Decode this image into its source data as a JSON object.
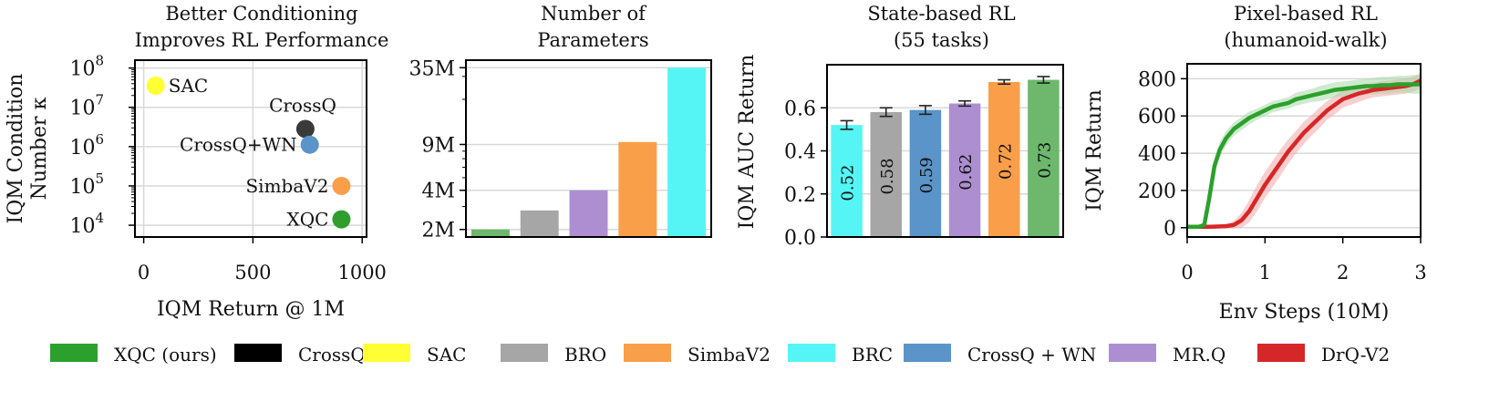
{
  "chart_data": [
    {
      "type": "scatter",
      "title": "Better Conditioning\nImproves RL Performance",
      "xlabel": "IQM Return @ 1M",
      "ylabel": "IQM Condition\nNumber κ",
      "xlim": [
        -40,
        1020
      ],
      "ylim_log10": [
        3.7,
        8.2
      ],
      "yscale": "log",
      "xticks": [
        0,
        500,
        1000
      ],
      "xtick_labels": [
        "0",
        "500",
        "1000"
      ],
      "yticks_log10": [
        4,
        5,
        6,
        7,
        8
      ],
      "ytick_labels": [
        "10",
        "10",
        "10",
        "10",
        "10"
      ],
      "ytick_exponents": [
        "4",
        "5",
        "6",
        "7",
        "8"
      ],
      "grid": true,
      "points": [
        {
          "name": "SAC",
          "x": 55,
          "y_log10": 7.55,
          "color": "#ffff33",
          "label": "SAC"
        },
        {
          "name": "CrossQ",
          "x": 740,
          "y_log10": 6.45,
          "color": "#3a3a3a",
          "label": "CrossQ"
        },
        {
          "name": "CrossQ+WN",
          "x": 760,
          "y_log10": 6.05,
          "color": "#5a94c8",
          "label": "CrossQ+WN"
        },
        {
          "name": "SimbaV2",
          "x": 905,
          "y_log10": 5.0,
          "color": "#f99f4a",
          "label": "SimbaV2"
        },
        {
          "name": "XQC",
          "x": 905,
          "y_log10": 4.15,
          "color": "#2e9e2e",
          "label": "XQC"
        }
      ]
    },
    {
      "type": "bar",
      "title": "Number of\nParameters",
      "yscale": "log",
      "ytick_values": [
        2,
        4,
        9,
        35
      ],
      "ytick_labels": [
        "2M",
        "4M",
        "9M",
        "35M"
      ],
      "ylim_millions": [
        1.75,
        40
      ],
      "grid": true,
      "bars": [
        {
          "name": "XQC",
          "value_millions": 2.0,
          "color": "#6db86d"
        },
        {
          "name": "BRO",
          "value_millions": 2.8,
          "color": "#a6a6a6"
        },
        {
          "name": "MR.Q",
          "value_millions": 4.0,
          "color": "#ad8fd1"
        },
        {
          "name": "SimbaV2",
          "value_millions": 9.4,
          "color": "#f99f4a"
        },
        {
          "name": "BRC",
          "value_millions": 35.0,
          "color": "#55f5f5"
        }
      ]
    },
    {
      "type": "bar",
      "title": "State-based RL\n(55 tasks)",
      "ylabel": "IQM AUC Return",
      "ylim": [
        0.0,
        0.8
      ],
      "yticks": [
        0.0,
        0.2,
        0.4,
        0.6
      ],
      "ytick_labels": [
        "0.0",
        "0.2",
        "0.4",
        "0.6"
      ],
      "grid": true,
      "bars": [
        {
          "name": "BRC",
          "value": 0.52,
          "err": 0.02,
          "color": "#55f5f5",
          "label": "0.52"
        },
        {
          "name": "BRO",
          "value": 0.58,
          "err": 0.02,
          "color": "#a6a6a6",
          "label": "0.58"
        },
        {
          "name": "CrossQ + WN",
          "value": 0.59,
          "err": 0.02,
          "color": "#5a94c8",
          "label": "0.59"
        },
        {
          "name": "MR.Q",
          "value": 0.62,
          "err": 0.012,
          "color": "#ad8fd1",
          "label": "0.62"
        },
        {
          "name": "SimbaV2",
          "value": 0.72,
          "err": 0.01,
          "color": "#f99f4a",
          "label": "0.72"
        },
        {
          "name": "XQC",
          "value": 0.73,
          "err": 0.015,
          "color": "#6db86d",
          "label": "0.73"
        }
      ]
    },
    {
      "type": "line",
      "title": "Pixel-based RL\n(humanoid-walk)",
      "xlabel": "Env Steps (10M)",
      "ylabel": "IQM Return",
      "xlim": [
        0,
        3
      ],
      "ylim": [
        -50,
        880
      ],
      "xticks": [
        0,
        1,
        2,
        3
      ],
      "xtick_labels": [
        "0",
        "1",
        "2",
        "3"
      ],
      "yticks": [
        0,
        200,
        400,
        600,
        800
      ],
      "ytick_labels": [
        "0",
        "200",
        "400",
        "600",
        "800"
      ],
      "grid": true,
      "series": [
        {
          "name": "DrQ-V2",
          "color": "#d62728",
          "band_color": "#f2a8a8",
          "x": [
            0,
            0.3,
            0.5,
            0.6,
            0.7,
            0.8,
            0.9,
            1.0,
            1.1,
            1.2,
            1.3,
            1.4,
            1.5,
            1.6,
            1.7,
            1.8,
            1.9,
            2.0,
            2.1,
            2.2,
            2.3,
            2.4,
            2.5,
            2.6,
            2.7,
            2.8,
            2.9,
            3.0
          ],
          "y": [
            5,
            5,
            8,
            15,
            40,
            90,
            160,
            230,
            290,
            350,
            410,
            460,
            510,
            550,
            590,
            630,
            660,
            690,
            705,
            720,
            730,
            740,
            745,
            750,
            755,
            760,
            770,
            790
          ],
          "band": [
            5,
            5,
            10,
            20,
            40,
            60,
            70,
            70,
            70,
            70,
            65,
            60,
            60,
            55,
            55,
            50,
            50,
            45,
            45,
            45,
            40,
            40,
            40,
            40,
            40,
            40,
            40,
            40
          ]
        },
        {
          "name": "XQC",
          "color": "#2ca02c",
          "band_color": "#a8d8a8",
          "x": [
            0,
            0.15,
            0.22,
            0.28,
            0.35,
            0.42,
            0.5,
            0.6,
            0.7,
            0.8,
            0.9,
            1.0,
            1.1,
            1.2,
            1.3,
            1.4,
            1.5,
            1.6,
            1.7,
            1.8,
            1.9,
            2.0,
            2.1,
            2.2,
            2.3,
            2.4,
            2.5,
            2.6,
            2.7,
            2.8,
            2.9,
            3.0
          ],
          "y": [
            5,
            5,
            15,
            150,
            330,
            420,
            480,
            530,
            560,
            590,
            610,
            630,
            650,
            660,
            670,
            690,
            700,
            710,
            720,
            730,
            740,
            745,
            750,
            755,
            760,
            760,
            765,
            765,
            770,
            770,
            770,
            770
          ],
          "band": [
            5,
            5,
            10,
            30,
            40,
            40,
            40,
            35,
            35,
            35,
            30,
            30,
            30,
            30,
            30,
            35,
            35,
            35,
            40,
            40,
            40,
            40,
            40,
            40,
            40,
            45,
            45,
            45,
            45,
            45,
            50,
            50
          ]
        }
      ]
    }
  ],
  "legend": {
    "placement": "bottom",
    "items": [
      {
        "label": "XQC (ours)",
        "color": "#2ca02c"
      },
      {
        "label": "CrossQ",
        "color": "#000000"
      },
      {
        "label": "SAC",
        "color": "#ffff33"
      },
      {
        "label": "BRO",
        "color": "#a6a6a6"
      },
      {
        "label": "SimbaV2",
        "color": "#f99f4a"
      },
      {
        "label": "BRC",
        "color": "#55f5f5"
      },
      {
        "label": "CrossQ + WN",
        "color": "#5a94c8"
      },
      {
        "label": "MR.Q",
        "color": "#ad8fd1"
      },
      {
        "label": "DrQ-V2",
        "color": "#d62728"
      }
    ]
  }
}
